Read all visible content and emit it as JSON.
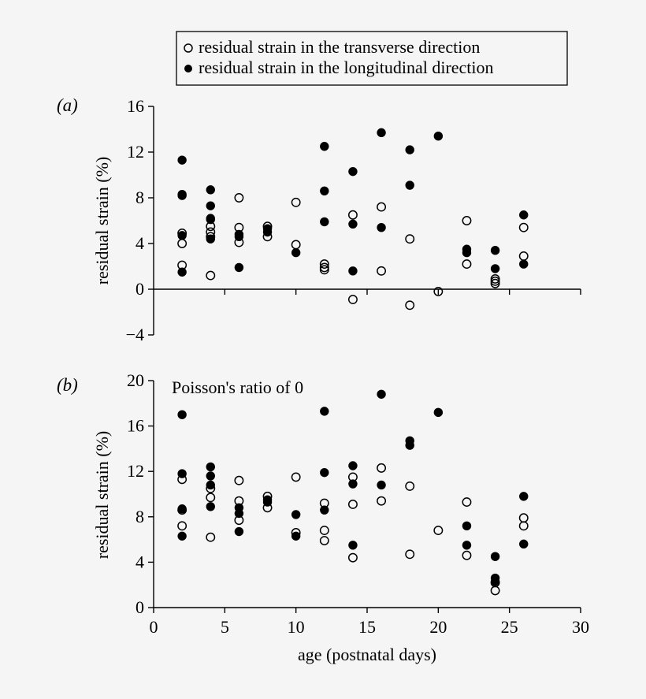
{
  "legend": {
    "items": [
      {
        "marker": "open-circle",
        "label": "residual strain in the transverse direction"
      },
      {
        "marker": "filled-circle",
        "label": "residual strain in the longitudinal direction"
      }
    ],
    "position": "top-center"
  },
  "chart_data": [
    {
      "type": "scatter",
      "panel_label": "(a)",
      "ylabel": "residual strain (%)",
      "xlabel": "",
      "annotation": "",
      "xlim": [
        0,
        30
      ],
      "ylim": [
        -4,
        16
      ],
      "yticks": [
        "−4",
        "0",
        "4",
        "8",
        "12",
        "16"
      ],
      "ytick_values": [
        -4,
        0,
        4,
        8,
        12,
        16
      ],
      "xticks_shown_labels": false,
      "x_axis_at_y": 0,
      "series": [
        {
          "name": "residual strain in the transverse direction",
          "marker": "open",
          "points": [
            [
              2,
              4.9
            ],
            [
              2,
              4.0
            ],
            [
              2,
              2.1
            ],
            [
              4,
              5.5
            ],
            [
              4,
              5.0
            ],
            [
              4,
              4.6
            ],
            [
              4,
              1.2
            ],
            [
              6,
              8.0
            ],
            [
              6,
              5.4
            ],
            [
              6,
              4.1
            ],
            [
              8,
              5.5
            ],
            [
              8,
              4.6
            ],
            [
              10,
              7.6
            ],
            [
              10,
              3.9
            ],
            [
              12,
              2.2
            ],
            [
              12,
              1.9
            ],
            [
              12,
              1.7
            ],
            [
              14,
              6.5
            ],
            [
              14,
              -0.9
            ],
            [
              16,
              7.2
            ],
            [
              16,
              1.6
            ],
            [
              18,
              4.4
            ],
            [
              18,
              -1.4
            ],
            [
              20,
              -0.2
            ],
            [
              22,
              6.0
            ],
            [
              22,
              2.2
            ],
            [
              24,
              0.9
            ],
            [
              24,
              0.7
            ],
            [
              24,
              0.5
            ],
            [
              26,
              5.4
            ],
            [
              26,
              2.9
            ]
          ]
        },
        {
          "name": "residual strain in the longitudinal direction",
          "marker": "filled",
          "points": [
            [
              2,
              11.3
            ],
            [
              2,
              8.3
            ],
            [
              2,
              8.2
            ],
            [
              2,
              4.7
            ],
            [
              2,
              1.5
            ],
            [
              4,
              8.7
            ],
            [
              4,
              7.3
            ],
            [
              4,
              6.2
            ],
            [
              4,
              6.1
            ],
            [
              4,
              4.4
            ],
            [
              6,
              4.8
            ],
            [
              6,
              4.6
            ],
            [
              6,
              1.9
            ],
            [
              8,
              5.3
            ],
            [
              8,
              5.0
            ],
            [
              10,
              3.2
            ],
            [
              12,
              12.5
            ],
            [
              12,
              8.6
            ],
            [
              12,
              5.9
            ],
            [
              14,
              10.3
            ],
            [
              14,
              5.7
            ],
            [
              14,
              1.6
            ],
            [
              16,
              13.7
            ],
            [
              16,
              5.4
            ],
            [
              18,
              12.2
            ],
            [
              18,
              9.1
            ],
            [
              20,
              13.4
            ],
            [
              22,
              3.5
            ],
            [
              22,
              3.2
            ],
            [
              24,
              3.4
            ],
            [
              24,
              1.8
            ],
            [
              26,
              6.5
            ],
            [
              26,
              2.2
            ]
          ]
        }
      ]
    },
    {
      "type": "scatter",
      "panel_label": "(b)",
      "ylabel": "residual strain (%)",
      "xlabel": "age (postnatal days)",
      "annotation": "Poisson's ratio of 0",
      "xlim": [
        0,
        30
      ],
      "ylim": [
        0,
        20
      ],
      "xticks": [
        "0",
        "5",
        "10",
        "15",
        "20",
        "25",
        "30"
      ],
      "xtick_values": [
        0,
        5,
        10,
        15,
        20,
        25,
        30
      ],
      "yticks": [
        "0",
        "4",
        "8",
        "12",
        "16",
        "20"
      ],
      "ytick_values": [
        0,
        4,
        8,
        12,
        16,
        20
      ],
      "series": [
        {
          "name": "residual strain in the transverse direction",
          "marker": "open",
          "points": [
            [
              2,
              11.3
            ],
            [
              2,
              8.6
            ],
            [
              2,
              7.2
            ],
            [
              4,
              10.5
            ],
            [
              4,
              9.7
            ],
            [
              4,
              6.2
            ],
            [
              6,
              11.2
            ],
            [
              6,
              9.4
            ],
            [
              6,
              7.7
            ],
            [
              8,
              9.8
            ],
            [
              8,
              8.8
            ],
            [
              10,
              11.5
            ],
            [
              10,
              6.6
            ],
            [
              12,
              9.2
            ],
            [
              12,
              6.8
            ],
            [
              12,
              5.9
            ],
            [
              14,
              11.5
            ],
            [
              14,
              9.1
            ],
            [
              14,
              4.4
            ],
            [
              16,
              12.3
            ],
            [
              16,
              9.4
            ],
            [
              18,
              10.7
            ],
            [
              18,
              4.7
            ],
            [
              20,
              6.8
            ],
            [
              22,
              9.3
            ],
            [
              22,
              4.6
            ],
            [
              24,
              2.2
            ],
            [
              24,
              1.5
            ],
            [
              26,
              7.9
            ],
            [
              26,
              7.2
            ]
          ]
        },
        {
          "name": "residual strain in the longitudinal direction",
          "marker": "filled",
          "points": [
            [
              2,
              17.0
            ],
            [
              2,
              11.8
            ],
            [
              2,
              8.7
            ],
            [
              2,
              6.3
            ],
            [
              4,
              12.4
            ],
            [
              4,
              11.6
            ],
            [
              4,
              10.8
            ],
            [
              4,
              8.9
            ],
            [
              6,
              8.8
            ],
            [
              6,
              8.3
            ],
            [
              6,
              6.7
            ],
            [
              8,
              9.5
            ],
            [
              8,
              9.3
            ],
            [
              10,
              8.2
            ],
            [
              10,
              6.3
            ],
            [
              12,
              17.3
            ],
            [
              12,
              11.9
            ],
            [
              12,
              8.6
            ],
            [
              14,
              12.5
            ],
            [
              14,
              10.9
            ],
            [
              14,
              5.5
            ],
            [
              16,
              18.8
            ],
            [
              16,
              10.8
            ],
            [
              18,
              14.7
            ],
            [
              18,
              14.3
            ],
            [
              20,
              17.2
            ],
            [
              22,
              7.2
            ],
            [
              22,
              5.5
            ],
            [
              24,
              4.5
            ],
            [
              24,
              2.6
            ],
            [
              24,
              2.3
            ],
            [
              26,
              9.8
            ],
            [
              26,
              5.6
            ]
          ]
        }
      ]
    }
  ]
}
